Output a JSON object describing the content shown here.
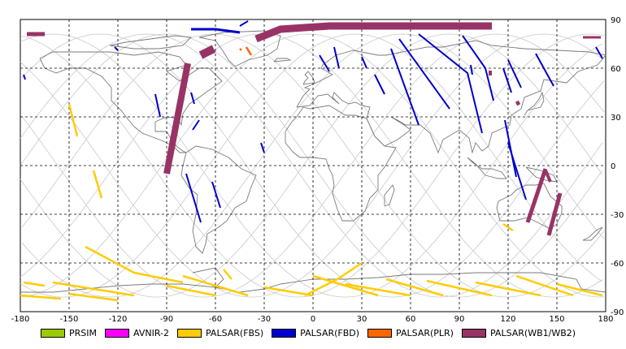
{
  "map": {
    "lon_range": [
      -180,
      180
    ],
    "lat_range": [
      -90,
      90
    ],
    "lon_ticks": [
      "-180",
      "-150",
      "-120",
      "-90",
      "-60",
      "-30",
      "0",
      "30",
      "60",
      "90",
      "120",
      "150",
      "180"
    ],
    "lat_ticks": [
      "90",
      "60",
      "30",
      "0",
      "-30",
      "-60",
      "-90"
    ],
    "grid_color": "#000000",
    "coast_color": "#7a7a7a",
    "orbit_color": "#c8c8c8"
  },
  "legend": [
    {
      "label": "PRSIM",
      "color": "#99cc00"
    },
    {
      "label": "AVNIR-2",
      "color": "#ff00ff"
    },
    {
      "label": "PALSAR(FBS)",
      "color": "#ffcc00"
    },
    {
      "label": "PALSAR(FBD)",
      "color": "#0000cc"
    },
    {
      "label": "PALSAR(PLR)",
      "color": "#ff6600"
    },
    {
      "label": "PALSAR(WB1/WB2)",
      "color": "#993366"
    }
  ]
}
